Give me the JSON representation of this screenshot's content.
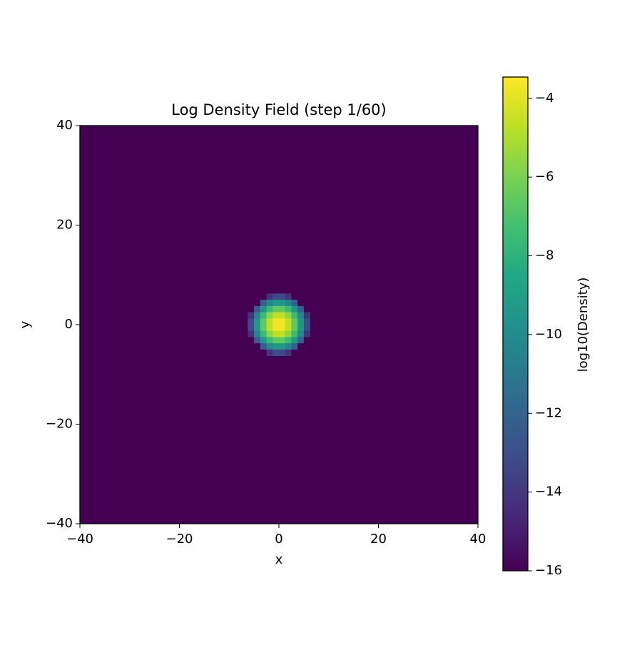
{
  "chart_data": {
    "type": "heatmap",
    "title": "Log Density Field (step 1/60)",
    "xlabel": "x",
    "ylabel": "y",
    "colorbar_label": "log10(Density)",
    "colormap": "viridis",
    "xlim": [
      -40,
      40
    ],
    "ylim": [
      -40,
      40
    ],
    "xticks": [
      {
        "value": -40,
        "label": "−40"
      },
      {
        "value": -20,
        "label": "−20"
      },
      0,
      20,
      40
    ],
    "yticks": [
      {
        "value": -40,
        "label": "−40"
      },
      {
        "value": -20,
        "label": "−20"
      },
      0,
      20,
      40
    ],
    "background": -16,
    "extent": [
      -6.25,
      6.25,
      -6.25,
      6.25
    ],
    "z": [
      [
        -16,
        -16,
        -16,
        -14.1,
        -13.1,
        -13.1,
        -14.1,
        -16,
        -16,
        -16
      ],
      [
        -16,
        -16,
        -12.2,
        -10.3,
        -9.4,
        -9.4,
        -10.3,
        -12.2,
        -16,
        -16
      ],
      [
        -16,
        -12.2,
        -9.4,
        -7.5,
        -6.6,
        -6.6,
        -7.5,
        -9.4,
        -12.2,
        -16
      ],
      [
        -14.1,
        -10.3,
        -7.5,
        -5.6,
        -4.7,
        -4.7,
        -5.6,
        -7.5,
        -10.3,
        -14.1
      ],
      [
        -13.1,
        -9.4,
        -6.6,
        -4.7,
        -3.7,
        -3.7,
        -4.7,
        -6.6,
        -9.4,
        -13.1
      ],
      [
        -13.1,
        -9.4,
        -6.6,
        -4.7,
        -3.7,
        -3.7,
        -4.7,
        -6.6,
        -9.4,
        -13.1
      ],
      [
        -14.1,
        -10.3,
        -7.5,
        -5.6,
        -4.7,
        -4.7,
        -5.6,
        -7.5,
        -10.3,
        -14.1
      ],
      [
        -16,
        -12.2,
        -9.4,
        -7.5,
        -6.6,
        -6.6,
        -7.5,
        -9.4,
        -12.2,
        -16
      ],
      [
        -16,
        -16,
        -12.2,
        -10.3,
        -9.4,
        -9.4,
        -10.3,
        -12.2,
        -16,
        -16
      ],
      [
        -16,
        -16,
        -16,
        -14.1,
        -13.1,
        -13.1,
        -14.1,
        -16,
        -16,
        -16
      ]
    ],
    "clim": [
      -16,
      -3.46
    ],
    "cticks": [
      {
        "value": -16,
        "label": "−16"
      },
      {
        "value": -14,
        "label": "−14"
      },
      {
        "value": -12,
        "label": "−12"
      },
      {
        "value": -10,
        "label": "−10"
      },
      {
        "value": -8,
        "label": "−8"
      },
      {
        "value": -6,
        "label": "−6"
      },
      {
        "value": -4,
        "label": "−4"
      }
    ]
  }
}
